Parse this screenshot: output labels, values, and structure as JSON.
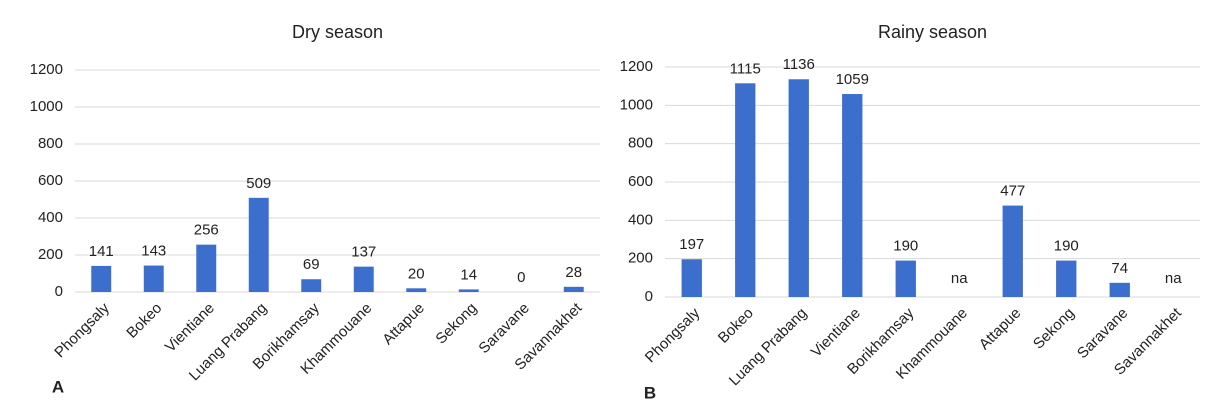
{
  "chart_data": [
    {
      "type": "bar",
      "title": "Dry season",
      "panel_label": "A",
      "categories": [
        "Phongsaly",
        "Bokeo",
        "Vientiane",
        "Luang Prabang",
        "Borikhamsay",
        "Khammouane",
        "Attapue",
        "Sekong",
        "Saravane",
        "Savannakhet"
      ],
      "values": [
        141,
        143,
        256,
        509,
        69,
        137,
        20,
        14,
        0,
        28
      ],
      "color": "#3c6fcd",
      "ylim": [
        0,
        1200
      ],
      "yticks": [
        0,
        200,
        400,
        600,
        800,
        1000,
        1200
      ],
      "grid": true
    },
    {
      "type": "bar",
      "title": "Rainy season",
      "panel_label": "B",
      "categories": [
        "Phongsaly",
        "Bokeo",
        "Luang Prabang",
        "Vientiane",
        "Borikhamsay",
        "Khammouane",
        "Attapue",
        "Sekong",
        "Saravane",
        "Savannakhet"
      ],
      "values": [
        197,
        1115,
        1136,
        1059,
        190,
        null,
        477,
        190,
        74,
        null
      ],
      "value_labels": [
        "197",
        "1115",
        "1136",
        "1059",
        "190",
        "na",
        "477",
        "190",
        "74",
        "na"
      ],
      "color": "#3c6fcd",
      "ylim": [
        0,
        1200
      ],
      "yticks": [
        0,
        200,
        400,
        600,
        800,
        1000,
        1200
      ],
      "grid": true
    }
  ]
}
